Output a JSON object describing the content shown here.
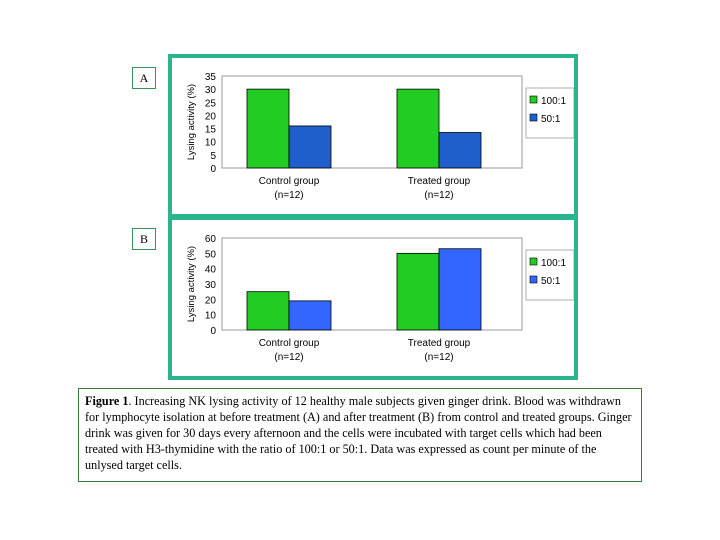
{
  "panels": [
    {
      "label": "A"
    },
    {
      "label": "B"
    }
  ],
  "colors": {
    "series1": "#22cc22",
    "series2": "#1f5fcc",
    "series2b": "#3366ff",
    "frame": "#2bb58f"
  },
  "chart_data": [
    {
      "type": "bar",
      "categories": [
        "Control group (n=12)",
        "Treated group (n=12)"
      ],
      "category_lines": [
        [
          "Control group",
          "(n=12)"
        ],
        [
          "Treated group",
          "(n=12)"
        ]
      ],
      "series": [
        {
          "name": "100:1",
          "values": [
            30,
            30
          ]
        },
        {
          "name": "50:1",
          "values": [
            16,
            13.5
          ]
        }
      ],
      "ylabel": "Lysing activity (%)",
      "xlabel": "",
      "ylim": [
        0,
        35
      ],
      "yticks": [
        0,
        5,
        10,
        15,
        20,
        25,
        30,
        35
      ],
      "legend": "right",
      "grid": false
    },
    {
      "type": "bar",
      "categories": [
        "Control group (n=12)",
        "Treated group (n=12)"
      ],
      "category_lines": [
        [
          "Control group",
          "(n=12)"
        ],
        [
          "Treated group",
          "(n=12)"
        ]
      ],
      "series": [
        {
          "name": "100:1",
          "values": [
            25,
            50
          ]
        },
        {
          "name": "50:1",
          "values": [
            19,
            53
          ]
        }
      ],
      "ylabel": "Lysing activity (%)",
      "xlabel": "",
      "ylim": [
        0,
        60
      ],
      "yticks": [
        0,
        10,
        20,
        30,
        40,
        50,
        60
      ],
      "legend": "right",
      "grid": false
    }
  ],
  "caption": {
    "label": "Figure 1",
    "text": ". Increasing NK lysing activity of 12 healthy male subjects given ginger drink. Blood was withdrawn for lymphocyte isolation at before treatment (A) and after treatment (B) from control and treated groups. Ginger drink was given for 30 days every afternoon and the cells were incubated with target cells which had been treated with H3-thymidine with the ratio of 100:1 or 50:1. Data was expressed as count per minute of the unlysed target cells."
  }
}
